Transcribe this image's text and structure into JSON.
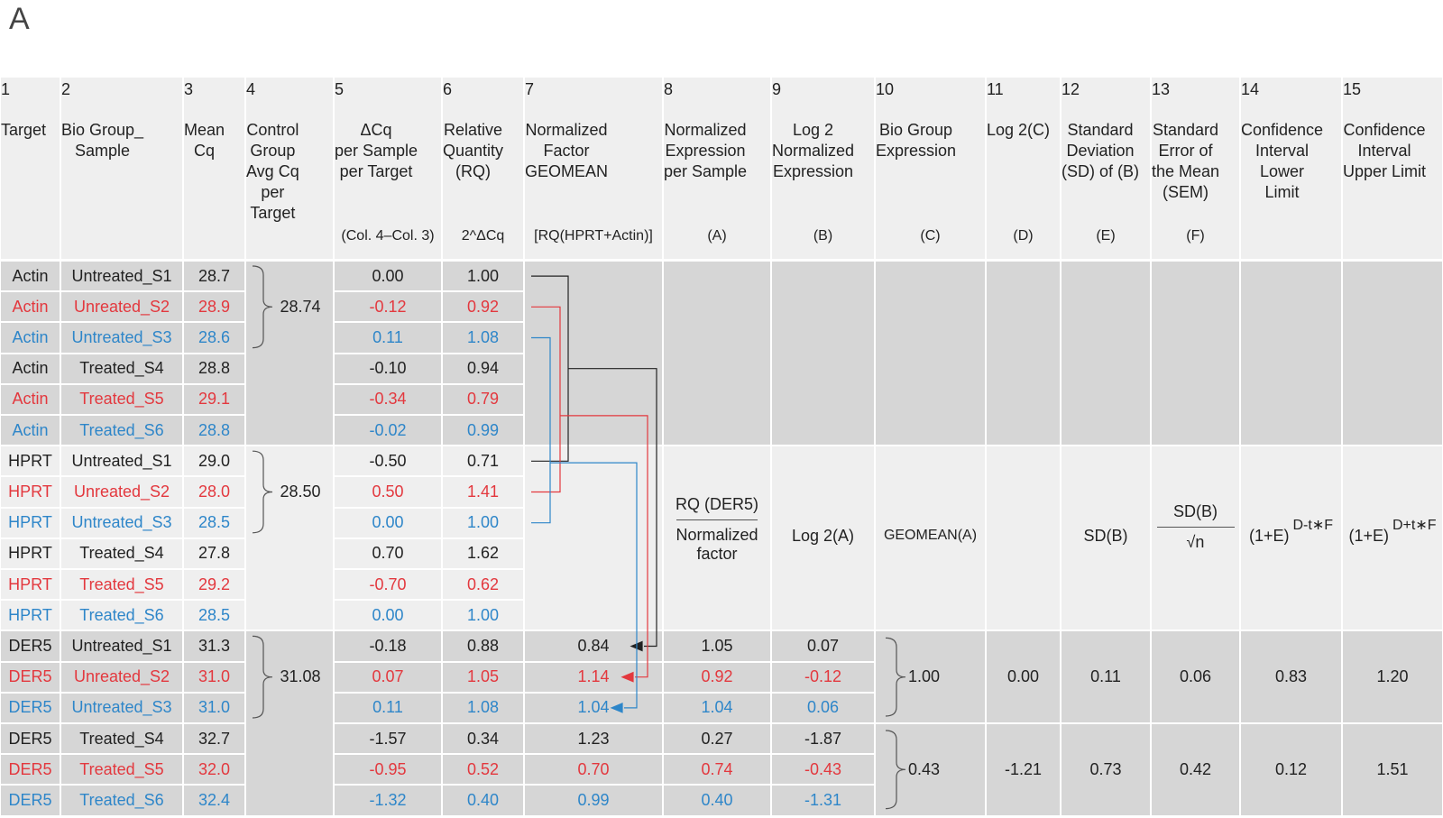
{
  "panel_label": "A",
  "columns": [
    {
      "num": "1",
      "title": "Target",
      "note": ""
    },
    {
      "num": "2",
      "title": "Bio Group_\nSample",
      "note": ""
    },
    {
      "num": "3",
      "title": "Mean\nCq",
      "note": ""
    },
    {
      "num": "4",
      "title": "Control\nGroup\nAvg Cq\nper\nTarget",
      "note": ""
    },
    {
      "num": "5",
      "title": "ΔCq\nper Sample\nper Target",
      "note": "(Col. 4–Col. 3)"
    },
    {
      "num": "6",
      "title": "Relative\nQuantity\n(RQ)",
      "note": "2^ΔCq"
    },
    {
      "num": "7",
      "title": "Normalized\nFactor\nGEOMEAN",
      "note": "[RQ(HPRT+Actin)]"
    },
    {
      "num": "8",
      "title": "Normalized\nExpression\nper Sample",
      "note": "(A)"
    },
    {
      "num": "9",
      "title": "Log 2\nNormalized\nExpression",
      "note": "(B)"
    },
    {
      "num": "10",
      "title": "Bio Group\nExpression",
      "note": "(C)"
    },
    {
      "num": "11",
      "title": "Log 2(C)",
      "note": "(D)"
    },
    {
      "num": "12",
      "title": "Standard\nDeviation\n(SD) of (B)",
      "note": "(E)"
    },
    {
      "num": "13",
      "title": "Standard\nError of\nthe Mean\n(SEM)",
      "note": "(F)"
    },
    {
      "num": "14",
      "title": "Confidence\nInterval\nLower\nLimit",
      "note": ""
    },
    {
      "num": "15",
      "title": "Confidence\nInterval\nUpper Limit",
      "note": ""
    }
  ],
  "rows": [
    {
      "target": "Actin",
      "sample": "Untreated_S1",
      "cq": "28.7",
      "dcq": "0.00",
      "rq": "1.00",
      "nf": "",
      "ne": "",
      "log2ne": "",
      "color": "black"
    },
    {
      "target": "Actin",
      "sample": "Unreated_S2",
      "cq": "28.9",
      "dcq": "-0.12",
      "rq": "0.92",
      "nf": "",
      "ne": "",
      "log2ne": "",
      "color": "red"
    },
    {
      "target": "Actin",
      "sample": "Untreated_S3",
      "cq": "28.6",
      "dcq": "0.11",
      "rq": "1.08",
      "nf": "",
      "ne": "",
      "log2ne": "",
      "color": "blue"
    },
    {
      "target": "Actin",
      "sample": "Treated_S4",
      "cq": "28.8",
      "dcq": "-0.10",
      "rq": "0.94",
      "nf": "",
      "ne": "",
      "log2ne": "",
      "color": "black"
    },
    {
      "target": "Actin",
      "sample": "Treated_S5",
      "cq": "29.1",
      "dcq": "-0.34",
      "rq": "0.79",
      "nf": "",
      "ne": "",
      "log2ne": "",
      "color": "red"
    },
    {
      "target": "Actin",
      "sample": "Treated_S6",
      "cq": "28.8",
      "dcq": "-0.02",
      "rq": "0.99",
      "nf": "",
      "ne": "",
      "log2ne": "",
      "color": "blue"
    },
    {
      "target": "HPRT",
      "sample": "Untreated_S1",
      "cq": "29.0",
      "dcq": "-0.50",
      "rq": "0.71",
      "nf": "",
      "ne": "",
      "log2ne": "",
      "color": "black"
    },
    {
      "target": "HPRT",
      "sample": "Unreated_S2",
      "cq": "28.0",
      "dcq": "0.50",
      "rq": "1.41",
      "nf": "",
      "ne": "",
      "log2ne": "",
      "color": "red"
    },
    {
      "target": "HPRT",
      "sample": "Untreated_S3",
      "cq": "28.5",
      "dcq": "0.00",
      "rq": "1.00",
      "nf": "",
      "ne": "",
      "log2ne": "",
      "color": "blue"
    },
    {
      "target": "HPRT",
      "sample": "Treated_S4",
      "cq": "27.8",
      "dcq": "0.70",
      "rq": "1.62",
      "nf": "",
      "ne": "",
      "log2ne": "",
      "color": "black"
    },
    {
      "target": "HPRT",
      "sample": "Treated_S5",
      "cq": "29.2",
      "dcq": "-0.70",
      "rq": "0.62",
      "nf": "",
      "ne": "",
      "log2ne": "",
      "color": "red"
    },
    {
      "target": "HPRT",
      "sample": "Treated_S6",
      "cq": "28.5",
      "dcq": "0.00",
      "rq": "1.00",
      "nf": "",
      "ne": "",
      "log2ne": "",
      "color": "blue"
    },
    {
      "target": "DER5",
      "sample": "Untreated_S1",
      "cq": "31.3",
      "dcq": "-0.18",
      "rq": "0.88",
      "nf": "0.84",
      "ne": "1.05",
      "log2ne": "0.07",
      "color": "black"
    },
    {
      "target": "DER5",
      "sample": "Unreated_S2",
      "cq": "31.0",
      "dcq": "0.07",
      "rq": "1.05",
      "nf": "1.14",
      "ne": "0.92",
      "log2ne": "-0.12",
      "color": "red"
    },
    {
      "target": "DER5",
      "sample": "Untreated_S3",
      "cq": "31.0",
      "dcq": "0.11",
      "rq": "1.08",
      "nf": "1.04",
      "ne": "1.04",
      "log2ne": "0.06",
      "color": "blue"
    },
    {
      "target": "DER5",
      "sample": "Treated_S4",
      "cq": "32.7",
      "dcq": "-1.57",
      "rq": "0.34",
      "nf": "1.23",
      "ne": "0.27",
      "log2ne": "-1.87",
      "color": "black"
    },
    {
      "target": "DER5",
      "sample": "Treated_S5",
      "cq": "32.0",
      "dcq": "-0.95",
      "rq": "0.52",
      "nf": "0.70",
      "ne": "0.74",
      "log2ne": "-0.43",
      "color": "red"
    },
    {
      "target": "DER5",
      "sample": "Treated_S6",
      "cq": "32.4",
      "dcq": "-1.32",
      "rq": "0.40",
      "nf": "0.99",
      "ne": "0.40",
      "log2ne": "-1.31",
      "color": "blue"
    }
  ],
  "control_avg": [
    "28.74",
    "28.50",
    "31.08"
  ],
  "groups": [
    {
      "c": "1.00",
      "d": "0.00",
      "e": "0.11",
      "f": "0.06",
      "lower": "0.83",
      "upper": "1.20"
    },
    {
      "c": "0.43",
      "d": "-1.21",
      "e": "0.73",
      "f": "0.42",
      "lower": "0.12",
      "upper": "1.51"
    }
  ],
  "formulas": {
    "ne_top": "RQ (DER5)",
    "ne_bottom": "Normalized\nfactor",
    "log2": "Log 2(A)",
    "geomean": "GEOMEAN(A)",
    "sd": "SD(B)",
    "sem_top": "SD(B)",
    "sem_bottom": "√n",
    "ci_lower_base": "(1+E)",
    "ci_lower_exp": "D-t∗F",
    "ci_upper_base": "(1+E)",
    "ci_upper_exp": "D+t∗F"
  },
  "colors": {
    "black": "#222222",
    "red": "#e3383e",
    "blue": "#2e86c9",
    "header_bg": "#efefef",
    "dark_bg": "#d6d6d6",
    "light_bg": "#efefef"
  }
}
